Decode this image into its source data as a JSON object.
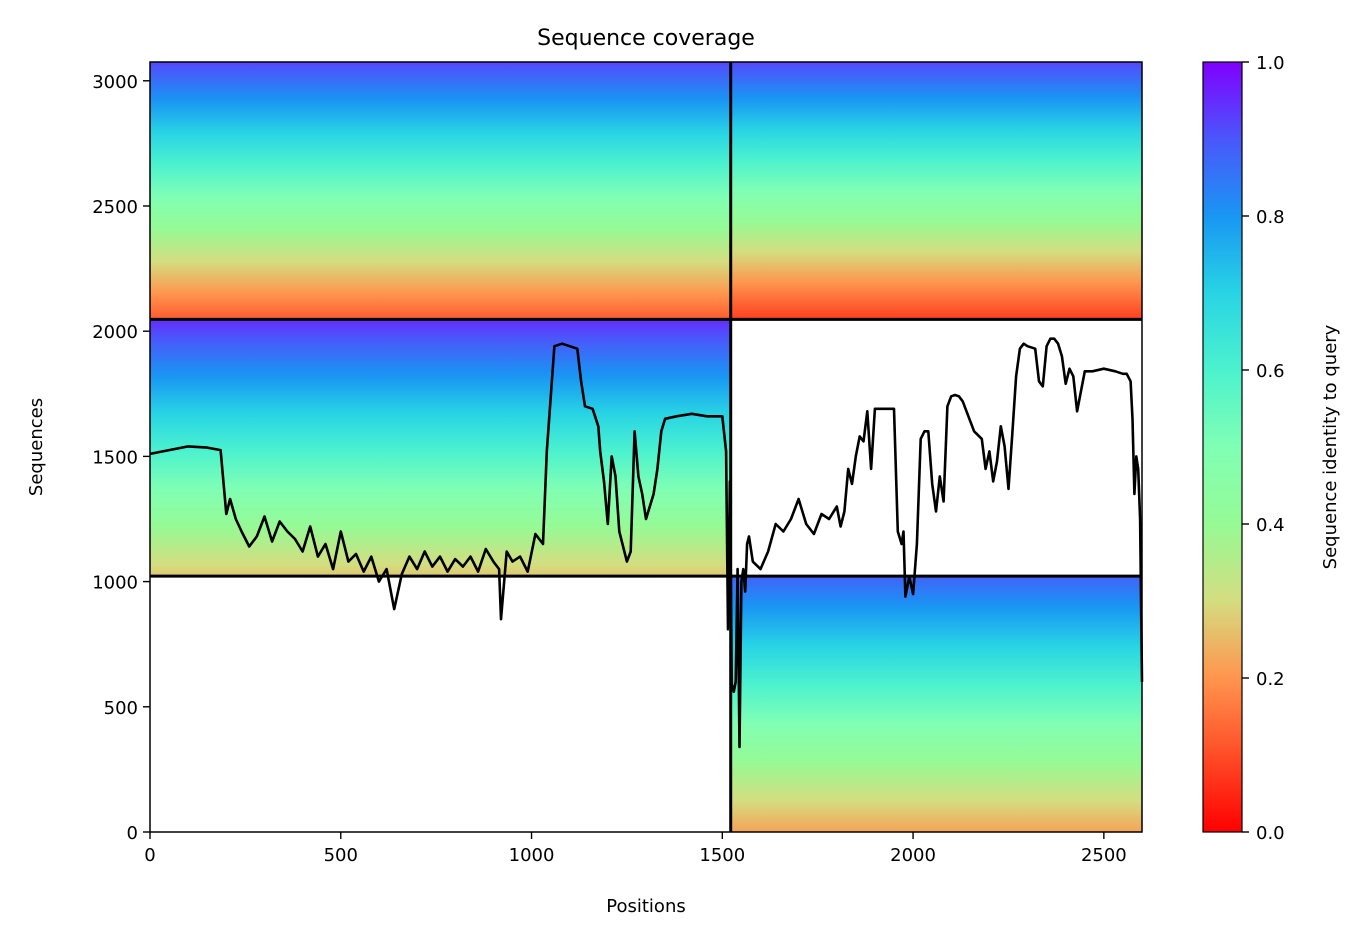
{
  "chart_data": {
    "type": "heatmap",
    "title": "Sequence coverage",
    "xlabel": "Positions",
    "ylabel": "Sequences",
    "xlim": [
      0,
      2600
    ],
    "ylim": [
      0,
      3075
    ],
    "x_ticks": [
      0,
      500,
      1000,
      1500,
      2000,
      2500
    ],
    "y_ticks": [
      0,
      500,
      1000,
      1500,
      2000,
      2500,
      3000
    ],
    "grid": false,
    "colorbar": {
      "label": "Sequence identity to query",
      "colormap": "rainbow_r",
      "range": [
        0,
        1
      ],
      "ticks": [
        "0.0",
        "0.2",
        "0.4",
        "0.6",
        "0.8",
        "1.0"
      ]
    },
    "separator_lines": {
      "vertical_x": 1522,
      "horizontal_left_y": [
        1022,
        2047
      ],
      "horizontal_right_y": [
        1022,
        2047
      ]
    },
    "blocks": [
      {
        "name": "top-left",
        "x": [
          0,
          1522
        ],
        "y": [
          2047,
          3075
        ],
        "identity_top": 0.92,
        "identity_bottom": 0.12
      },
      {
        "name": "top-right",
        "x": [
          1522,
          2600
        ],
        "y": [
          2047,
          3075
        ],
        "identity_top": 0.92,
        "identity_bottom": 0.08
      },
      {
        "name": "middle-left",
        "x": [
          0,
          1522
        ],
        "y": [
          1022,
          2047
        ],
        "identity_top": 0.95,
        "identity_bottom": 0.27
      },
      {
        "name": "bottom-right",
        "x": [
          1522,
          2600
        ],
        "y": [
          0,
          1022
        ],
        "identity_top": 0.88,
        "identity_bottom": 0.22
      }
    ],
    "coverage_line": {
      "color": "#000000",
      "x": [
        0,
        50,
        100,
        150,
        185,
        200,
        210,
        225,
        240,
        260,
        280,
        300,
        320,
        340,
        360,
        380,
        400,
        420,
        440,
        460,
        480,
        500,
        520,
        540,
        560,
        580,
        600,
        620,
        640,
        660,
        680,
        700,
        720,
        740,
        760,
        780,
        800,
        820,
        840,
        860,
        880,
        900,
        915,
        920,
        935,
        950,
        970,
        990,
        1010,
        1030,
        1040,
        1060,
        1080,
        1100,
        1120,
        1130,
        1140,
        1160,
        1175,
        1180,
        1190,
        1200,
        1210,
        1220,
        1230,
        1250,
        1260,
        1270,
        1280,
        1290,
        1300,
        1320,
        1330,
        1340,
        1350,
        1380,
        1420,
        1460,
        1500,
        1510,
        1515,
        1520,
        1525,
        1530,
        1535,
        1540,
        1545,
        1550,
        1555,
        1560,
        1565,
        1570,
        1580,
        1600,
        1620,
        1640,
        1660,
        1680,
        1700,
        1720,
        1740,
        1760,
        1780,
        1800,
        1810,
        1820,
        1830,
        1840,
        1850,
        1860,
        1870,
        1880,
        1890,
        1900,
        1910,
        1930,
        1950,
        1960,
        1970,
        1975,
        1980,
        1990,
        2000,
        2010,
        2020,
        2030,
        2040,
        2050,
        2060,
        2070,
        2080,
        2090,
        2100,
        2110,
        2120,
        2130,
        2140,
        2160,
        2180,
        2190,
        2200,
        2210,
        2220,
        2230,
        2240,
        2250,
        2260,
        2270,
        2280,
        2290,
        2300,
        2320,
        2330,
        2340,
        2350,
        2360,
        2370,
        2380,
        2390,
        2400,
        2410,
        2420,
        2430,
        2450,
        2470,
        2500,
        2530,
        2550,
        2560,
        2570,
        2575,
        2580,
        2585,
        2590,
        2595,
        2600
      ],
      "y": [
        1510,
        1525,
        1540,
        1535,
        1525,
        1270,
        1330,
        1250,
        1200,
        1140,
        1180,
        1260,
        1160,
        1240,
        1200,
        1170,
        1120,
        1220,
        1100,
        1150,
        1050,
        1200,
        1080,
        1110,
        1040,
        1100,
        1000,
        1050,
        890,
        1030,
        1100,
        1050,
        1120,
        1060,
        1100,
        1040,
        1090,
        1060,
        1100,
        1040,
        1130,
        1080,
        1050,
        850,
        1120,
        1080,
        1100,
        1040,
        1190,
        1150,
        1520,
        1940,
        1950,
        1940,
        1930,
        1800,
        1700,
        1690,
        1620,
        1520,
        1400,
        1230,
        1500,
        1420,
        1200,
        1080,
        1120,
        1600,
        1420,
        1350,
        1250,
        1350,
        1450,
        1600,
        1650,
        1660,
        1670,
        1660,
        1660,
        1520,
        810,
        1400,
        590,
        560,
        600,
        1050,
        340,
        1000,
        1050,
        960,
        1150,
        1180,
        1080,
        1050,
        1120,
        1230,
        1200,
        1250,
        1330,
        1230,
        1190,
        1270,
        1250,
        1300,
        1220,
        1280,
        1450,
        1390,
        1500,
        1580,
        1560,
        1680,
        1450,
        1690,
        1690,
        1690,
        1690,
        1200,
        1150,
        1200,
        940,
        1020,
        950,
        1150,
        1570,
        1600,
        1600,
        1390,
        1280,
        1420,
        1320,
        1700,
        1740,
        1745,
        1740,
        1720,
        1680,
        1600,
        1570,
        1450,
        1520,
        1400,
        1480,
        1620,
        1540,
        1370,
        1590,
        1820,
        1930,
        1950,
        1940,
        1930,
        1800,
        1780,
        1940,
        1970,
        1970,
        1950,
        1900,
        1790,
        1850,
        1820,
        1680,
        1840,
        1840,
        1850,
        1840,
        1830,
        1830,
        1800,
        1650,
        1350,
        1500,
        1450,
        1250,
        600
      ]
    }
  }
}
